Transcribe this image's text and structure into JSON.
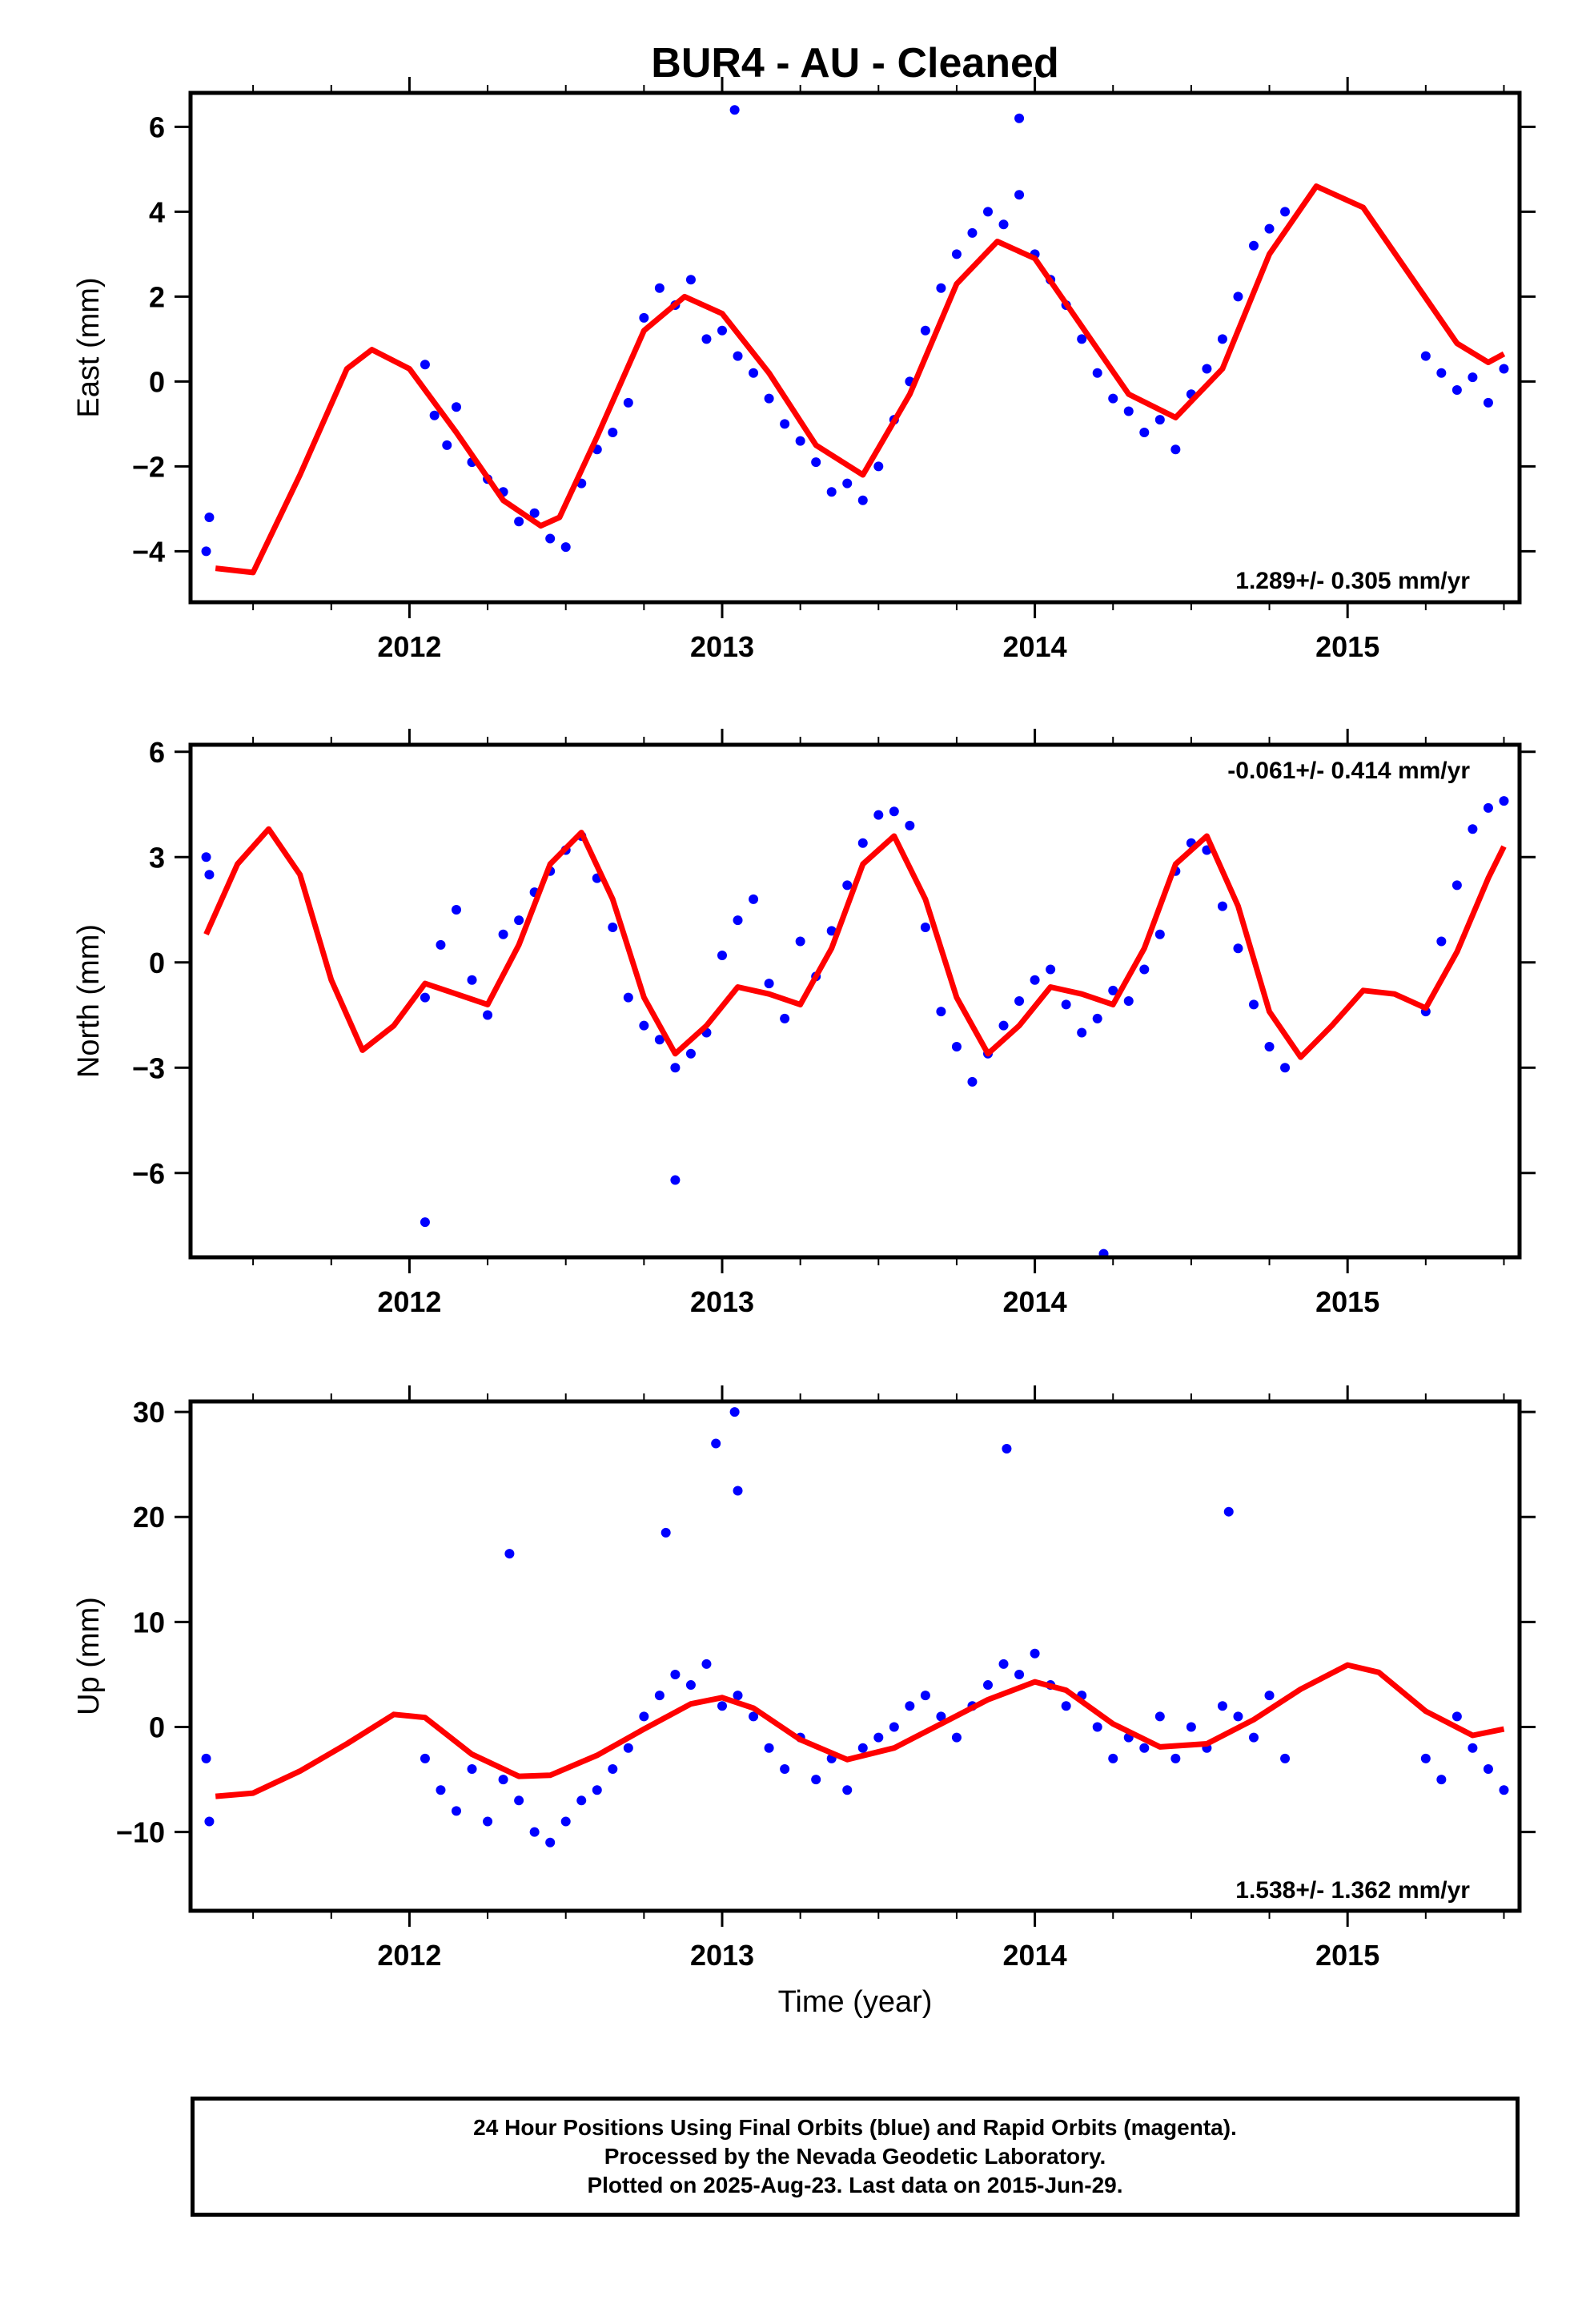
{
  "page": {
    "title": "BUR4  - AU - Cleaned",
    "xlabel": "Time (year)"
  },
  "colors": {
    "data": "#0000ff",
    "model": "#ff0000",
    "axes": "#000000"
  },
  "footer": {
    "line1": "24 Hour Positions Using Final Orbits (blue) and Rapid Orbits (magenta).",
    "line2": "Processed by the Nevada Geodetic Laboratory.",
    "line3": "Plotted on 2025-Aug-23. Last data on 2015-Jun-29."
  },
  "chart_data": [
    {
      "type": "scatter",
      "title": "BUR4  - AU - Cleaned",
      "ylabel": "East (mm)",
      "xlim": [
        2011.3,
        2015.55
      ],
      "ylim": [
        -5.2,
        6.8
      ],
      "yticks": [
        -4,
        -2,
        0,
        2,
        4,
        6
      ],
      "xticks": [
        2012,
        2013,
        2014,
        2015
      ],
      "annotation": "1.289+/- 0.305 mm/yr",
      "model": {
        "name": "",
        "x": [
          2011.38,
          2011.5,
          2011.65,
          2011.8,
          2011.88,
          2012.0,
          2012.15,
          2012.3,
          2012.42,
          2012.48,
          2012.6,
          2012.75,
          2012.88,
          2013.0,
          2013.15,
          2013.3,
          2013.45,
          2013.6,
          2013.75,
          2013.88,
          2014.0,
          2014.15,
          2014.3,
          2014.45,
          2014.6,
          2014.75,
          2014.9,
          2015.05,
          2015.2,
          2015.35,
          2015.45,
          2015.5
        ],
        "y": [
          -4.4,
          -4.5,
          -2.2,
          0.3,
          0.75,
          0.3,
          -1.2,
          -2.8,
          -3.4,
          -3.2,
          -1.3,
          1.2,
          2.0,
          1.6,
          0.2,
          -1.5,
          -2.2,
          -0.3,
          2.3,
          3.3,
          2.9,
          1.3,
          -0.3,
          -0.85,
          0.3,
          3.0,
          4.6,
          4.1,
          2.5,
          0.9,
          0.45,
          0.65
        ]
      },
      "data": {
        "x": [
          2011.35,
          2011.36,
          2012.05,
          2012.08,
          2012.12,
          2012.15,
          2012.2,
          2012.25,
          2012.3,
          2012.35,
          2012.4,
          2012.45,
          2012.5,
          2012.55,
          2012.6,
          2012.65,
          2012.7,
          2012.75,
          2012.8,
          2012.85,
          2012.9,
          2012.95,
          2013.0,
          2013.05,
          2013.1,
          2013.15,
          2013.2,
          2013.25,
          2013.3,
          2013.35,
          2013.4,
          2013.45,
          2013.5,
          2013.55,
          2013.6,
          2013.65,
          2013.7,
          2013.75,
          2013.8,
          2013.85,
          2013.9,
          2013.95,
          2014.0,
          2014.05,
          2014.1,
          2014.15,
          2014.2,
          2014.25,
          2014.3,
          2014.35,
          2014.4,
          2014.45,
          2014.5,
          2014.55,
          2014.6,
          2014.65,
          2014.7,
          2014.75,
          2014.8,
          2015.25,
          2015.3,
          2015.35,
          2015.4,
          2015.45,
          2015.5,
          2013.04,
          2013.95
        ],
        "y": [
          -4.0,
          -3.2,
          0.4,
          -0.8,
          -1.5,
          -0.6,
          -1.9,
          -2.3,
          -2.6,
          -3.3,
          -3.1,
          -3.7,
          -3.9,
          -2.4,
          -1.6,
          -1.2,
          -0.5,
          1.5,
          2.2,
          1.8,
          2.4,
          1.0,
          1.2,
          0.6,
          0.2,
          -0.4,
          -1.0,
          -1.4,
          -1.9,
          -2.6,
          -2.4,
          -2.8,
          -2.0,
          -0.9,
          0.0,
          1.2,
          2.2,
          3.0,
          3.5,
          4.0,
          3.7,
          4.4,
          3.0,
          2.4,
          1.8,
          1.0,
          0.2,
          -0.4,
          -0.7,
          -1.2,
          -0.9,
          -1.6,
          -0.3,
          0.3,
          1.0,
          2.0,
          3.2,
          3.6,
          4.0,
          0.6,
          0.2,
          -0.2,
          0.1,
          -0.5,
          0.3,
          6.4,
          6.2
        ]
      }
    },
    {
      "type": "scatter",
      "ylabel": "North (mm)",
      "xlim": [
        2011.3,
        2015.55
      ],
      "ylim": [
        -8.4,
        6.2
      ],
      "yticks": [
        -6,
        -3,
        0,
        3,
        6
      ],
      "xticks": [
        2012,
        2013,
        2014,
        2015
      ],
      "annotation": "-0.061+/- 0.414 mm/yr",
      "model": {
        "name": "",
        "x": [
          2011.35,
          2011.45,
          2011.55,
          2011.65,
          2011.75,
          2011.85,
          2011.95,
          2012.05,
          2012.15,
          2012.25,
          2012.35,
          2012.45,
          2012.55,
          2012.65,
          2012.75,
          2012.85,
          2012.95,
          2013.05,
          2013.15,
          2013.25,
          2013.35,
          2013.45,
          2013.55,
          2013.65,
          2013.75,
          2013.85,
          2013.95,
          2014.05,
          2014.15,
          2014.25,
          2014.35,
          2014.45,
          2014.55,
          2014.65,
          2014.75,
          2014.85,
          2014.95,
          2015.05,
          2015.15,
          2015.25,
          2015.35,
          2015.45,
          2015.5
        ],
        "y": [
          0.8,
          2.8,
          3.8,
          2.5,
          -0.5,
          -2.5,
          -1.8,
          -0.6,
          -0.9,
          -1.2,
          0.5,
          2.8,
          3.7,
          1.8,
          -1.0,
          -2.6,
          -1.8,
          -0.7,
          -0.9,
          -1.2,
          0.4,
          2.8,
          3.6,
          1.8,
          -1.0,
          -2.6,
          -1.8,
          -0.7,
          -0.9,
          -1.2,
          0.4,
          2.8,
          3.6,
          1.6,
          -1.4,
          -2.7,
          -1.8,
          -0.8,
          -0.9,
          -1.3,
          0.3,
          2.4,
          3.3
        ]
      },
      "data": {
        "x": [
          2011.35,
          2011.36,
          2012.05,
          2012.1,
          2012.15,
          2012.2,
          2012.25,
          2012.3,
          2012.35,
          2012.4,
          2012.45,
          2012.5,
          2012.55,
          2012.6,
          2012.65,
          2012.7,
          2012.75,
          2012.8,
          2012.85,
          2012.9,
          2012.95,
          2013.0,
          2013.05,
          2013.1,
          2013.15,
          2013.2,
          2013.25,
          2013.3,
          2013.35,
          2013.4,
          2013.45,
          2013.5,
          2013.55,
          2013.6,
          2013.65,
          2013.7,
          2013.75,
          2013.8,
          2013.85,
          2013.9,
          2013.95,
          2014.0,
          2014.05,
          2014.1,
          2014.15,
          2014.2,
          2014.25,
          2014.3,
          2014.35,
          2014.4,
          2014.45,
          2014.5,
          2014.55,
          2014.6,
          2014.65,
          2014.7,
          2014.75,
          2014.8,
          2015.25,
          2015.3,
          2015.35,
          2015.4,
          2015.45,
          2015.5,
          2012.05,
          2012.85,
          2014.22
        ],
        "y": [
          3.0,
          2.5,
          -1.0,
          0.5,
          1.5,
          -0.5,
          -1.5,
          0.8,
          1.2,
          2.0,
          2.6,
          3.2,
          3.6,
          2.4,
          1.0,
          -1.0,
          -1.8,
          -2.2,
          -3.0,
          -2.6,
          -2.0,
          0.2,
          1.2,
          1.8,
          -0.6,
          -1.6,
          0.6,
          -0.4,
          0.9,
          2.2,
          3.4,
          4.2,
          4.3,
          3.9,
          1.0,
          -1.4,
          -2.4,
          -3.4,
          -2.6,
          -1.8,
          -1.1,
          -0.5,
          -0.2,
          -1.2,
          -2.0,
          -1.6,
          -0.8,
          -1.1,
          -0.2,
          0.8,
          2.6,
          3.4,
          3.2,
          1.6,
          0.4,
          -1.2,
          -2.4,
          -3.0,
          -1.4,
          0.6,
          2.2,
          3.8,
          4.4,
          4.6,
          -7.4,
          -6.2,
          -8.3
        ]
      }
    },
    {
      "type": "scatter",
      "ylabel": "Up (mm)",
      "xlabel": "Time (year)",
      "xlim": [
        2011.3,
        2015.55
      ],
      "ylim": [
        -17.5,
        31
      ],
      "yticks": [
        -10,
        0,
        10,
        20,
        30
      ],
      "xticks": [
        2012,
        2013,
        2014,
        2015
      ],
      "annotation": "1.538+/- 1.362 mm/yr",
      "model": {
        "name": "",
        "x": [
          2011.38,
          2011.5,
          2011.65,
          2011.8,
          2011.95,
          2012.05,
          2012.2,
          2012.35,
          2012.45,
          2012.6,
          2012.75,
          2012.9,
          2013.0,
          2013.1,
          2013.25,
          2013.4,
          2013.55,
          2013.7,
          2013.85,
          2014.0,
          2014.1,
          2014.25,
          2014.4,
          2014.55,
          2014.7,
          2014.85,
          2015.0,
          2015.1,
          2015.25,
          2015.4,
          2015.5
        ],
        "y": [
          -6.6,
          -6.3,
          -4.2,
          -1.6,
          1.2,
          0.9,
          -2.6,
          -4.7,
          -4.6,
          -2.7,
          -0.2,
          2.2,
          2.8,
          1.8,
          -1.2,
          -3.1,
          -2.0,
          0.3,
          2.6,
          4.3,
          3.5,
          0.3,
          -1.9,
          -1.6,
          0.7,
          3.6,
          5.9,
          5.2,
          1.5,
          -0.8,
          -0.2
        ]
      },
      "data": {
        "x": [
          2011.35,
          2011.36,
          2012.05,
          2012.1,
          2012.15,
          2012.2,
          2012.25,
          2012.3,
          2012.35,
          2012.4,
          2012.45,
          2012.5,
          2012.55,
          2012.6,
          2012.65,
          2012.7,
          2012.75,
          2012.8,
          2012.85,
          2012.9,
          2012.95,
          2013.0,
          2013.05,
          2013.1,
          2013.15,
          2013.2,
          2013.25,
          2013.3,
          2013.35,
          2013.4,
          2013.45,
          2013.5,
          2013.55,
          2013.6,
          2013.65,
          2013.7,
          2013.75,
          2013.8,
          2013.85,
          2013.9,
          2013.95,
          2014.0,
          2014.05,
          2014.1,
          2014.15,
          2014.2,
          2014.25,
          2014.3,
          2014.35,
          2014.4,
          2014.45,
          2014.5,
          2014.55,
          2014.6,
          2014.65,
          2014.7,
          2014.75,
          2014.8,
          2015.25,
          2015.3,
          2015.35,
          2015.4,
          2015.45,
          2015.5,
          2012.98,
          2013.04,
          2013.05,
          2013.91,
          2014.62,
          2012.32,
          2012.82
        ],
        "y": [
          -3.0,
          -9.0,
          -3.0,
          -6.0,
          -8.0,
          -4.0,
          -9.0,
          -5.0,
          -7.0,
          -10.0,
          -11.0,
          -9.0,
          -7.0,
          -6.0,
          -4.0,
          -2.0,
          1.0,
          3.0,
          5.0,
          4.0,
          6.0,
          2.0,
          3.0,
          1.0,
          -2.0,
          -4.0,
          -1.0,
          -5.0,
          -3.0,
          -6.0,
          -2.0,
          -1.0,
          0.0,
          2.0,
          3.0,
          1.0,
          -1.0,
          2.0,
          4.0,
          6.0,
          5.0,
          7.0,
          4.0,
          2.0,
          3.0,
          0.0,
          -3.0,
          -1.0,
          -2.0,
          1.0,
          -3.0,
          0.0,
          -2.0,
          2.0,
          1.0,
          -1.0,
          3.0,
          -3.0,
          -3.0,
          -5.0,
          1.0,
          -2.0,
          -4.0,
          -6.0,
          27.0,
          30.0,
          22.5,
          26.5,
          20.5,
          16.5,
          18.5
        ]
      }
    }
  ]
}
